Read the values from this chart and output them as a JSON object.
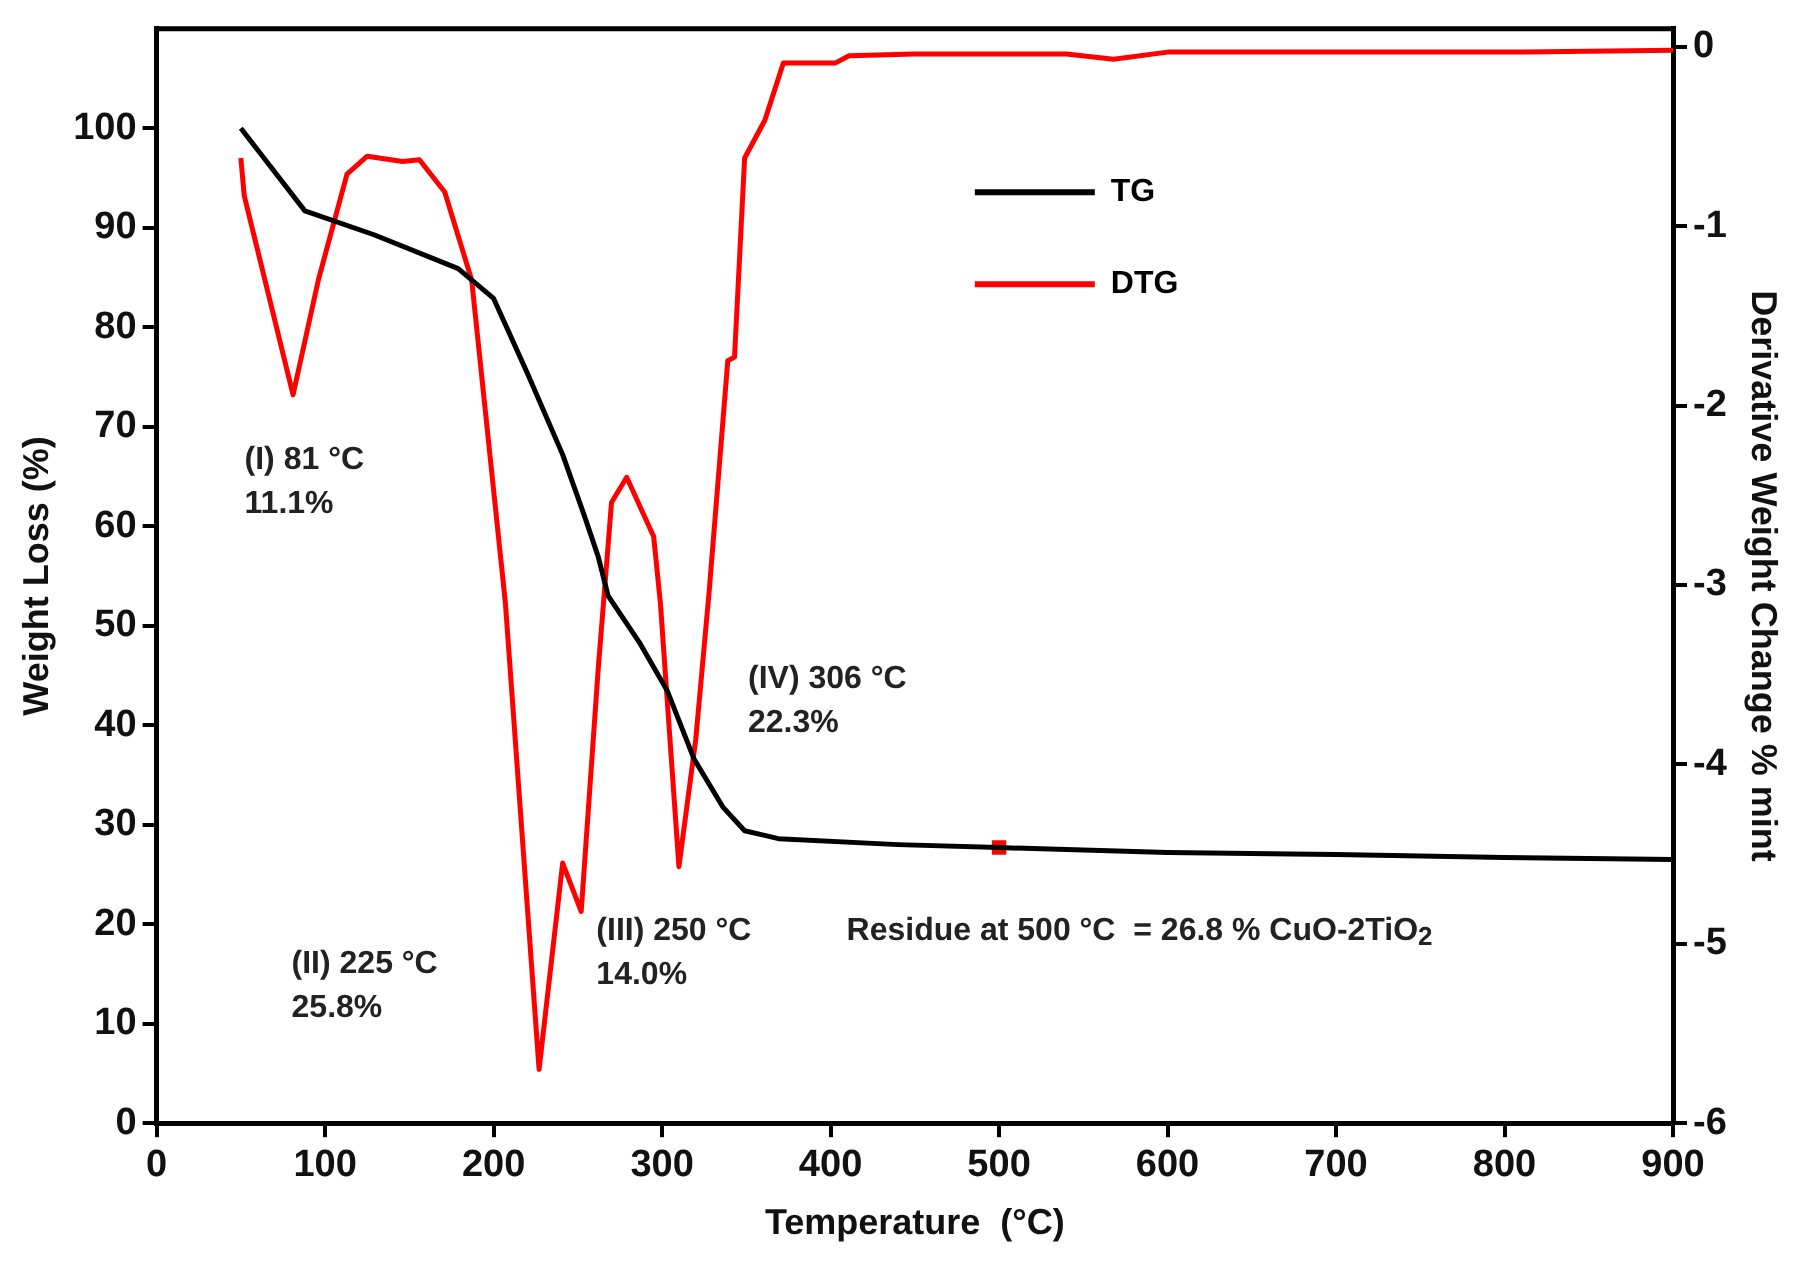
{
  "chart_data": {
    "type": "line",
    "xlabel": "Temperature  (°C)",
    "ylabel": "Weight Loss (%)",
    "y2label": "Derivative Weight Change % mint",
    "xlim": [
      0,
      900
    ],
    "xticks": [
      0,
      100,
      200,
      300,
      400,
      500,
      600,
      700,
      800,
      900
    ],
    "ylim": [
      0,
      110
    ],
    "yticks": [
      0,
      10,
      20,
      30,
      40,
      50,
      60,
      70,
      80,
      90,
      100
    ],
    "y2lim": [
      -6,
      0.1
    ],
    "y2ticks": [
      -6,
      -5,
      -4,
      -3,
      -2,
      -1,
      0
    ],
    "grid": false,
    "legend": "top",
    "marker": "none",
    "line_style": "solid",
    "series": [
      {
        "name": "TG",
        "color": "#000000",
        "x": [
          50,
          88,
          129,
          179,
          200,
          220,
          241,
          254,
          262,
          268,
          287,
          303,
          319,
          336,
          349,
          369,
          440,
          500,
          600,
          700,
          800,
          900
        ],
        "values": [
          100,
          91.7,
          89.3,
          85.9,
          82.9,
          75.4,
          67.2,
          61,
          57,
          53,
          48.2,
          43.5,
          36.6,
          31.8,
          29.4,
          28.6,
          28,
          27.7,
          27.2,
          27,
          26.7,
          26.5
        ]
      },
      {
        "name": "DTG",
        "color": "#ff0000",
        "axis": "y2",
        "x": [
          50,
          52,
          81,
          96,
          113,
          125,
          146,
          156,
          171,
          187,
          207,
          227,
          241,
          252,
          262,
          270,
          279,
          295,
          299,
          310,
          320,
          328,
          339,
          343,
          349,
          361,
          372,
          403,
          411,
          450,
          540,
          568,
          600,
          700,
          800,
          900
        ],
        "values": [
          -0.62,
          -0.83,
          -1.94,
          -1.3,
          -0.71,
          -0.61,
          -0.64,
          -0.63,
          -0.81,
          -1.3,
          -3.1,
          -5.7,
          -4.55,
          -4.82,
          -3.48,
          -2.54,
          -2.4,
          -2.73,
          -3.1,
          -4.57,
          -3.86,
          -3.03,
          -1.75,
          -1.73,
          -0.62,
          -0.41,
          -0.09,
          -0.09,
          -0.05,
          -0.04,
          -0.04,
          -0.07,
          -0.03,
          -0.03,
          -0.03,
          -0.02
        ]
      },
      {
        "type": "scatter",
        "color": "#ff0000",
        "marker": "square",
        "x": [
          500
        ],
        "values": [
          27.7
        ]
      }
    ],
    "annotations": [
      "(I) 81 °C\n11.1%",
      "(II) 225 °C\n25.8%",
      "(III) 250 °C\n14.0%",
      "(IV) 306 °C\n22.3%",
      "Residue at 500 °C  = 26.8 % CuO-2TiO$_{2}$"
    ]
  }
}
